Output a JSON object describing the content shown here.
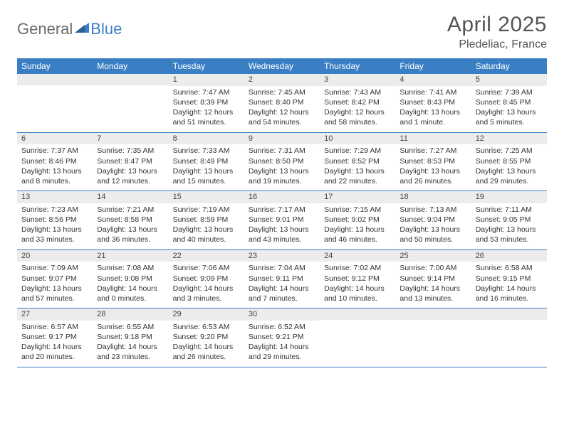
{
  "brand": {
    "part1": "General",
    "part2": "Blue"
  },
  "title": "April 2025",
  "location": "Pledeliac, France",
  "colors": {
    "header_bg": "#3a7fc4",
    "header_text": "#ffffff",
    "daynum_bg": "#ececec",
    "week_border": "#3a7fc4",
    "page_bg": "#ffffff",
    "body_text": "#333333",
    "brand_gray": "#6b6b6b",
    "brand_blue": "#3a7fc4"
  },
  "weekdays": [
    "Sunday",
    "Monday",
    "Tuesday",
    "Wednesday",
    "Thursday",
    "Friday",
    "Saturday"
  ],
  "weeks": [
    [
      {
        "day": "",
        "lines": []
      },
      {
        "day": "",
        "lines": []
      },
      {
        "day": "1",
        "lines": [
          "Sunrise: 7:47 AM",
          "Sunset: 8:39 PM",
          "Daylight: 12 hours and 51 minutes."
        ]
      },
      {
        "day": "2",
        "lines": [
          "Sunrise: 7:45 AM",
          "Sunset: 8:40 PM",
          "Daylight: 12 hours and 54 minutes."
        ]
      },
      {
        "day": "3",
        "lines": [
          "Sunrise: 7:43 AM",
          "Sunset: 8:42 PM",
          "Daylight: 12 hours and 58 minutes."
        ]
      },
      {
        "day": "4",
        "lines": [
          "Sunrise: 7:41 AM",
          "Sunset: 8:43 PM",
          "Daylight: 13 hours and 1 minute."
        ]
      },
      {
        "day": "5",
        "lines": [
          "Sunrise: 7:39 AM",
          "Sunset: 8:45 PM",
          "Daylight: 13 hours and 5 minutes."
        ]
      }
    ],
    [
      {
        "day": "6",
        "lines": [
          "Sunrise: 7:37 AM",
          "Sunset: 8:46 PM",
          "Daylight: 13 hours and 8 minutes."
        ]
      },
      {
        "day": "7",
        "lines": [
          "Sunrise: 7:35 AM",
          "Sunset: 8:47 PM",
          "Daylight: 13 hours and 12 minutes."
        ]
      },
      {
        "day": "8",
        "lines": [
          "Sunrise: 7:33 AM",
          "Sunset: 8:49 PM",
          "Daylight: 13 hours and 15 minutes."
        ]
      },
      {
        "day": "9",
        "lines": [
          "Sunrise: 7:31 AM",
          "Sunset: 8:50 PM",
          "Daylight: 13 hours and 19 minutes."
        ]
      },
      {
        "day": "10",
        "lines": [
          "Sunrise: 7:29 AM",
          "Sunset: 8:52 PM",
          "Daylight: 13 hours and 22 minutes."
        ]
      },
      {
        "day": "11",
        "lines": [
          "Sunrise: 7:27 AM",
          "Sunset: 8:53 PM",
          "Daylight: 13 hours and 26 minutes."
        ]
      },
      {
        "day": "12",
        "lines": [
          "Sunrise: 7:25 AM",
          "Sunset: 8:55 PM",
          "Daylight: 13 hours and 29 minutes."
        ]
      }
    ],
    [
      {
        "day": "13",
        "lines": [
          "Sunrise: 7:23 AM",
          "Sunset: 8:56 PM",
          "Daylight: 13 hours and 33 minutes."
        ]
      },
      {
        "day": "14",
        "lines": [
          "Sunrise: 7:21 AM",
          "Sunset: 8:58 PM",
          "Daylight: 13 hours and 36 minutes."
        ]
      },
      {
        "day": "15",
        "lines": [
          "Sunrise: 7:19 AM",
          "Sunset: 8:59 PM",
          "Daylight: 13 hours and 40 minutes."
        ]
      },
      {
        "day": "16",
        "lines": [
          "Sunrise: 7:17 AM",
          "Sunset: 9:01 PM",
          "Daylight: 13 hours and 43 minutes."
        ]
      },
      {
        "day": "17",
        "lines": [
          "Sunrise: 7:15 AM",
          "Sunset: 9:02 PM",
          "Daylight: 13 hours and 46 minutes."
        ]
      },
      {
        "day": "18",
        "lines": [
          "Sunrise: 7:13 AM",
          "Sunset: 9:04 PM",
          "Daylight: 13 hours and 50 minutes."
        ]
      },
      {
        "day": "19",
        "lines": [
          "Sunrise: 7:11 AM",
          "Sunset: 9:05 PM",
          "Daylight: 13 hours and 53 minutes."
        ]
      }
    ],
    [
      {
        "day": "20",
        "lines": [
          "Sunrise: 7:09 AM",
          "Sunset: 9:07 PM",
          "Daylight: 13 hours and 57 minutes."
        ]
      },
      {
        "day": "21",
        "lines": [
          "Sunrise: 7:08 AM",
          "Sunset: 9:08 PM",
          "Daylight: 14 hours and 0 minutes."
        ]
      },
      {
        "day": "22",
        "lines": [
          "Sunrise: 7:06 AM",
          "Sunset: 9:09 PM",
          "Daylight: 14 hours and 3 minutes."
        ]
      },
      {
        "day": "23",
        "lines": [
          "Sunrise: 7:04 AM",
          "Sunset: 9:11 PM",
          "Daylight: 14 hours and 7 minutes."
        ]
      },
      {
        "day": "24",
        "lines": [
          "Sunrise: 7:02 AM",
          "Sunset: 9:12 PM",
          "Daylight: 14 hours and 10 minutes."
        ]
      },
      {
        "day": "25",
        "lines": [
          "Sunrise: 7:00 AM",
          "Sunset: 9:14 PM",
          "Daylight: 14 hours and 13 minutes."
        ]
      },
      {
        "day": "26",
        "lines": [
          "Sunrise: 6:58 AM",
          "Sunset: 9:15 PM",
          "Daylight: 14 hours and 16 minutes."
        ]
      }
    ],
    [
      {
        "day": "27",
        "lines": [
          "Sunrise: 6:57 AM",
          "Sunset: 9:17 PM",
          "Daylight: 14 hours and 20 minutes."
        ]
      },
      {
        "day": "28",
        "lines": [
          "Sunrise: 6:55 AM",
          "Sunset: 9:18 PM",
          "Daylight: 14 hours and 23 minutes."
        ]
      },
      {
        "day": "29",
        "lines": [
          "Sunrise: 6:53 AM",
          "Sunset: 9:20 PM",
          "Daylight: 14 hours and 26 minutes."
        ]
      },
      {
        "day": "30",
        "lines": [
          "Sunrise: 6:52 AM",
          "Sunset: 9:21 PM",
          "Daylight: 14 hours and 29 minutes."
        ]
      },
      {
        "day": "",
        "lines": []
      },
      {
        "day": "",
        "lines": []
      },
      {
        "day": "",
        "lines": []
      }
    ]
  ]
}
